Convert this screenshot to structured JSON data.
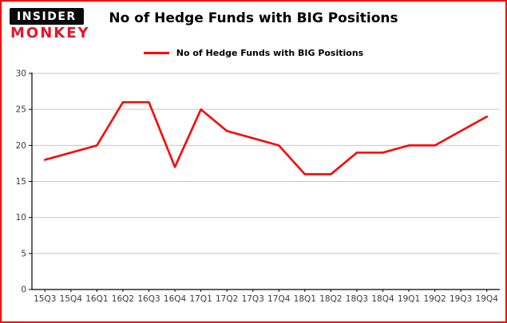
{
  "brand": {
    "line1": "INSIDER",
    "line2": "MONKEY"
  },
  "title": "No of Hedge Funds with BIG Positions",
  "legend": {
    "label": "No of Hedge Funds with BIG Positions"
  },
  "colors": {
    "accent": "#fe0000",
    "frame_border": "#fe0000",
    "grid": "#c8c8c8",
    "axis": "#000000",
    "tick_text": "#3a3a3a",
    "logo_red": "#e8132a"
  },
  "chart_data": {
    "type": "line",
    "title": "No of Hedge Funds with BIG Positions",
    "categories": [
      "15Q3",
      "15Q4",
      "16Q1",
      "16Q2",
      "16Q3",
      "16Q4",
      "17Q1",
      "17Q2",
      "17Q3",
      "17Q4",
      "18Q1",
      "18Q2",
      "18Q3",
      "18Q4",
      "19Q1",
      "19Q2",
      "19Q3",
      "19Q4"
    ],
    "series": [
      {
        "name": "No of Hedge Funds with BIG Positions",
        "values": [
          18,
          19,
          20,
          26,
          26,
          17,
          25,
          22,
          21,
          20,
          16,
          16,
          19,
          19,
          20,
          20,
          22,
          24
        ]
      }
    ],
    "xlabel": "",
    "ylabel": "",
    "ylim": [
      0,
      30
    ],
    "yticks": [
      0,
      5,
      10,
      15,
      20,
      25,
      30
    ],
    "line_color": "#fe0000",
    "grid": true,
    "legend_position": "top-center"
  }
}
